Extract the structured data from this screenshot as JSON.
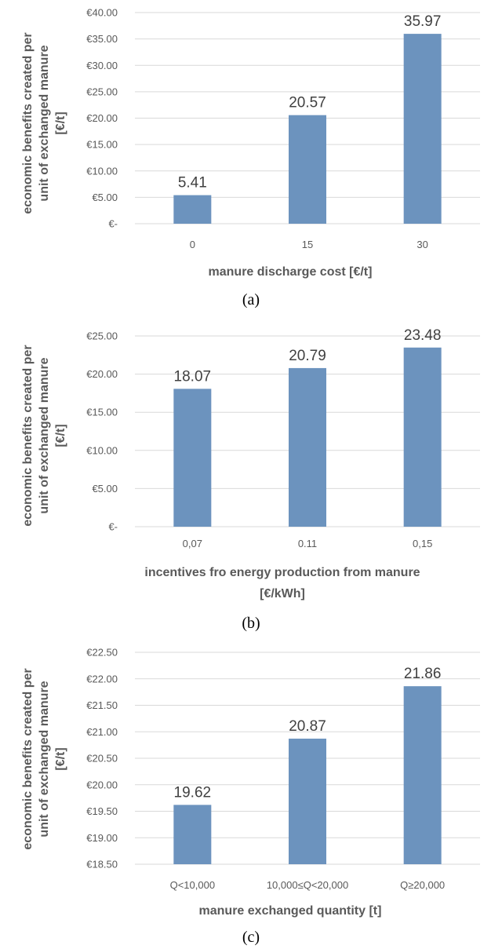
{
  "chart_data": [
    {
      "type": "bar",
      "caption": "(a)",
      "categories": [
        "0",
        "15",
        "30"
      ],
      "values": [
        5.41,
        20.57,
        35.97
      ],
      "data_labels": [
        "5.41",
        "20.57",
        "35.97"
      ],
      "xlabel": "manure discharge cost [€/t]",
      "ylabel": [
        "economic benefits created per",
        "unit of exchanged manure",
        "[€/t]"
      ],
      "ylim": [
        0,
        40
      ],
      "yticks": [
        0,
        5,
        10,
        15,
        20,
        25,
        30,
        35,
        40
      ],
      "ytick_labels": [
        "€-",
        "€5.00",
        "€10.00",
        "€15.00",
        "€20.00",
        "€25.00",
        "€30.00",
        "€35.00",
        "€40.00"
      ],
      "grid": true,
      "color": "#6c93be"
    },
    {
      "type": "bar",
      "caption": "(b)",
      "categories": [
        "0,07",
        "0.11",
        "0,15"
      ],
      "values": [
        18.07,
        20.79,
        23.48
      ],
      "data_labels": [
        "18.07",
        "20.79",
        "23.48"
      ],
      "xlabel": [
        "incentives fro energy production from manure",
        "[€/kWh]"
      ],
      "ylabel": [
        "economic benefits created per",
        "unit of exchanged manure",
        "[€/t]"
      ],
      "ylim": [
        0,
        25
      ],
      "yticks": [
        0,
        5,
        10,
        15,
        20,
        25
      ],
      "ytick_labels": [
        "€-",
        "€5.00",
        "€10.00",
        "€15.00",
        "€20.00",
        "€25.00"
      ],
      "grid": true,
      "color": "#6c93be"
    },
    {
      "type": "bar",
      "caption": "(c)",
      "categories": [
        "Q<10,000",
        "10,000≤Q<20,000",
        "Q≥20,000"
      ],
      "values": [
        19.62,
        20.87,
        21.86
      ],
      "data_labels": [
        "19.62",
        "20.87",
        "21.86"
      ],
      "xlabel": "manure exchanged quantity [t]",
      "ylabel": [
        "economic benefits created per",
        "unit of exchanged manure",
        "[€/t]"
      ],
      "ylim": [
        18.5,
        22.5
      ],
      "yticks": [
        18.5,
        19,
        19.5,
        20,
        20.5,
        21,
        21.5,
        22,
        22.5
      ],
      "ytick_labels": [
        "€18.50",
        "€19.00",
        "€19.50",
        "€20.00",
        "€20.50",
        "€21.00",
        "€21.50",
        "€22.00",
        "€22.50"
      ],
      "grid": true,
      "color": "#6c93be"
    }
  ]
}
